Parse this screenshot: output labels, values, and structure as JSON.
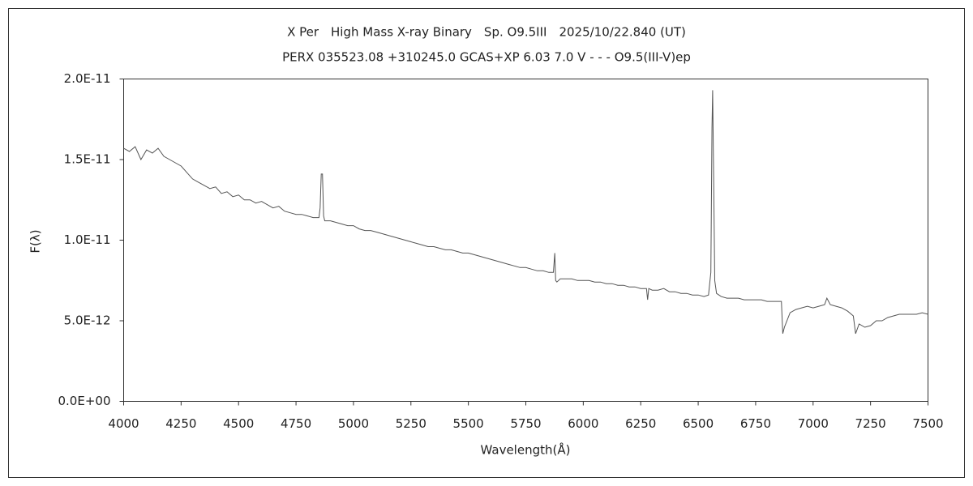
{
  "chart_data": {
    "type": "line",
    "title": "X Per　High Mass X-ray Binary　Sp. O9.5III　2025/10/22.840 (UT)",
    "subtitle": "PERX 035523.08 +310245.0 GCAS+XP 6.03 7.0 V - - - O9.5(III-V)ep",
    "x_label": "Wavelength(Å)",
    "y_label": "F(λ)",
    "xlim": [
      4000,
      7500
    ],
    "xticks": [
      4000,
      4250,
      4500,
      4750,
      5000,
      5250,
      5500,
      5750,
      6000,
      6250,
      6500,
      6750,
      7000,
      7250,
      7500
    ],
    "ylim": [
      0,
      2e-11
    ],
    "yticks": [
      {
        "value": 0,
        "label": "0.0E+00"
      },
      {
        "value": 5e-12,
        "label": "5.0E-12"
      },
      {
        "value": 1e-11,
        "label": "1.0E-11"
      },
      {
        "value": 1.5e-11,
        "label": "1.5E-11"
      },
      {
        "value": 2e-11,
        "label": "2.0E-11"
      }
    ],
    "grid": false,
    "x": [
      4000,
      4025,
      4050,
      4075,
      4100,
      4125,
      4150,
      4175,
      4200,
      4225,
      4250,
      4275,
      4300,
      4325,
      4350,
      4375,
      4400,
      4425,
      4450,
      4475,
      4500,
      4525,
      4550,
      4575,
      4600,
      4625,
      4650,
      4675,
      4700,
      4725,
      4750,
      4775,
      4800,
      4825,
      4850,
      4855,
      4860,
      4865,
      4870,
      4875,
      4900,
      4925,
      4950,
      4975,
      5000,
      5025,
      5050,
      5075,
      5100,
      5125,
      5150,
      5175,
      5200,
      5225,
      5250,
      5275,
      5300,
      5325,
      5350,
      5375,
      5400,
      5425,
      5450,
      5475,
      5500,
      5525,
      5550,
      5575,
      5600,
      5625,
      5650,
      5675,
      5700,
      5725,
      5750,
      5775,
      5800,
      5825,
      5850,
      5870,
      5876,
      5880,
      5885,
      5900,
      5925,
      5950,
      5975,
      6000,
      6025,
      6050,
      6075,
      6100,
      6125,
      6150,
      6175,
      6200,
      6225,
      6250,
      6275,
      6280,
      6285,
      6300,
      6325,
      6350,
      6375,
      6400,
      6425,
      6450,
      6475,
      6500,
      6525,
      6545,
      6555,
      6560,
      6563,
      6567,
      6572,
      6580,
      6600,
      6625,
      6650,
      6675,
      6700,
      6725,
      6750,
      6775,
      6800,
      6825,
      6855,
      6862,
      6868,
      6875,
      6900,
      6925,
      6950,
      6975,
      7000,
      7025,
      7050,
      7060,
      7075,
      7100,
      7125,
      7150,
      7175,
      7185,
      7200,
      7225,
      7250,
      7275,
      7300,
      7325,
      7350,
      7375,
      7400,
      7425,
      7450,
      7475,
      7500
    ],
    "series": [
      {
        "color": "#555555",
        "values": [
          1.57e-11,
          1.55e-11,
          1.58e-11,
          1.5e-11,
          1.56e-11,
          1.54e-11,
          1.57e-11,
          1.52e-11,
          1.5e-11,
          1.48e-11,
          1.46e-11,
          1.42e-11,
          1.38e-11,
          1.36e-11,
          1.34e-11,
          1.32e-11,
          1.33e-11,
          1.29e-11,
          1.3e-11,
          1.27e-11,
          1.28e-11,
          1.25e-11,
          1.25e-11,
          1.23e-11,
          1.24e-11,
          1.22e-11,
          1.2e-11,
          1.21e-11,
          1.18e-11,
          1.17e-11,
          1.16e-11,
          1.16e-11,
          1.15e-11,
          1.14e-11,
          1.14e-11,
          1.2e-11,
          1.41e-11,
          1.41e-11,
          1.15e-11,
          1.12e-11,
          1.12e-11,
          1.11e-11,
          1.1e-11,
          1.09e-11,
          1.09e-11,
          1.07e-11,
          1.06e-11,
          1.06e-11,
          1.05e-11,
          1.04e-11,
          1.03e-11,
          1.02e-11,
          1.01e-11,
          1e-11,
          9.9e-12,
          9.8e-12,
          9.7e-12,
          9.6e-12,
          9.6e-12,
          9.5e-12,
          9.4e-12,
          9.4e-12,
          9.3e-12,
          9.2e-12,
          9.2e-12,
          9.1e-12,
          9e-12,
          8.9e-12,
          8.8e-12,
          8.7e-12,
          8.6e-12,
          8.5e-12,
          8.4e-12,
          8.3e-12,
          8.3e-12,
          8.2e-12,
          8.1e-12,
          8.1e-12,
          8e-12,
          8e-12,
          9.2e-12,
          7.5e-12,
          7.4e-12,
          7.6e-12,
          7.6e-12,
          7.6e-12,
          7.5e-12,
          7.5e-12,
          7.5e-12,
          7.4e-12,
          7.4e-12,
          7.3e-12,
          7.3e-12,
          7.2e-12,
          7.2e-12,
          7.1e-12,
          7.1e-12,
          7e-12,
          7e-12,
          6.3e-12,
          7e-12,
          6.9e-12,
          6.9e-12,
          7e-12,
          6.8e-12,
          6.8e-12,
          6.7e-12,
          6.7e-12,
          6.6e-12,
          6.6e-12,
          6.5e-12,
          6.6e-12,
          8e-12,
          1.7e-11,
          1.93e-11,
          1.4e-11,
          7.5e-12,
          6.7e-12,
          6.5e-12,
          6.4e-12,
          6.4e-12,
          6.4e-12,
          6.3e-12,
          6.3e-12,
          6.3e-12,
          6.3e-12,
          6.2e-12,
          6.2e-12,
          6.2e-12,
          6.2e-12,
          4.2e-12,
          4.6e-12,
          5.5e-12,
          5.7e-12,
          5.8e-12,
          5.9e-12,
          5.8e-12,
          5.9e-12,
          6e-12,
          6.4e-12,
          6e-12,
          5.9e-12,
          5.8e-12,
          5.6e-12,
          5.3e-12,
          4.2e-12,
          4.8e-12,
          4.6e-12,
          4.7e-12,
          5e-12,
          5e-12,
          5.2e-12,
          5.3e-12,
          5.4e-12,
          5.4e-12,
          5.4e-12,
          5.4e-12,
          5.5e-12,
          5.4e-12
        ]
      }
    ]
  }
}
